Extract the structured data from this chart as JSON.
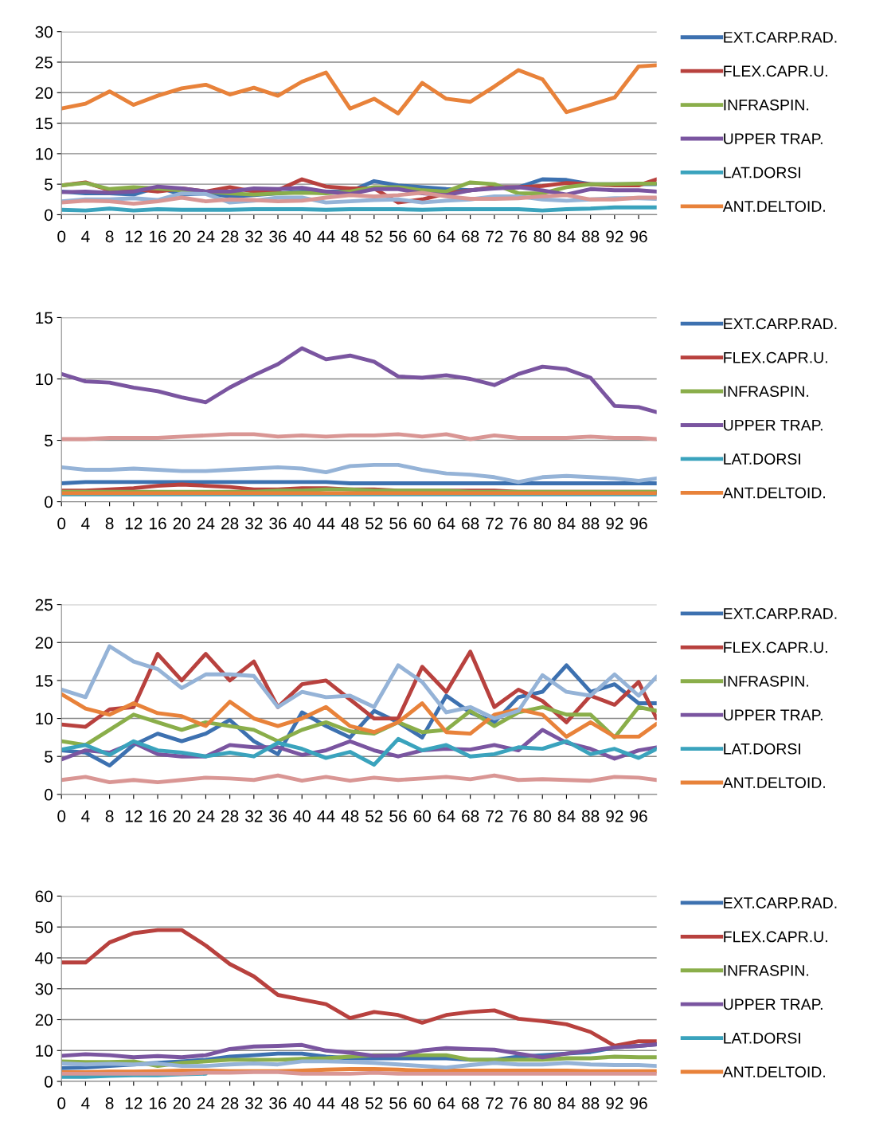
{
  "chart_data": [
    {
      "type": "line",
      "x": [
        0,
        4,
        8,
        12,
        16,
        20,
        24,
        28,
        32,
        36,
        40,
        44,
        48,
        52,
        56,
        60,
        64,
        68,
        72,
        76,
        80,
        84,
        88,
        92,
        96,
        99
      ],
      "xlim": [
        0,
        99
      ],
      "xticks": [
        0,
        4,
        8,
        12,
        16,
        20,
        24,
        28,
        32,
        36,
        40,
        44,
        48,
        52,
        56,
        60,
        64,
        68,
        72,
        76,
        80,
        84,
        88,
        92,
        96
      ],
      "ylim": [
        0,
        30
      ],
      "yticks": [
        0,
        5,
        10,
        15,
        20,
        25,
        30
      ],
      "grid": "y",
      "legend": "right",
      "marker": "none",
      "line_style": "solid",
      "series": [
        {
          "name": "EXT.CARP.RAD.",
          "color": "#3d71b0",
          "values": [
            3.8,
            3.5,
            3.5,
            3.3,
            4.5,
            3.3,
            3.5,
            3.0,
            3.2,
            3.5,
            3.8,
            3.8,
            3.8,
            5.5,
            4.8,
            4.5,
            4.2,
            4.0,
            4.5,
            4.5,
            5.8,
            5.7,
            5.0,
            5.0,
            5.0,
            5.0
          ]
        },
        {
          "name": "FLEX.CAPR.U.",
          "color": "#b8413e",
          "values": [
            4.8,
            5.3,
            4.0,
            4.2,
            3.8,
            4.3,
            3.8,
            4.5,
            3.8,
            4.0,
            5.8,
            4.6,
            4.3,
            4.3,
            2.0,
            2.5,
            3.5,
            4.0,
            4.5,
            4.5,
            4.7,
            5.2,
            5.0,
            4.8,
            4.8,
            5.8
          ]
        },
        {
          "name": "INFRASPIN.",
          "color": "#8aae4a",
          "values": [
            4.8,
            5.2,
            4.2,
            4.5,
            4.3,
            4.0,
            3.8,
            3.5,
            3.3,
            3.5,
            3.6,
            3.5,
            3.8,
            4.5,
            4.5,
            4.0,
            3.8,
            5.3,
            5.0,
            3.5,
            3.5,
            4.5,
            5.0,
            5.0,
            5.1,
            5.1
          ]
        },
        {
          "name": "UPPER TRAP.",
          "color": "#7a55a0",
          "values": [
            3.7,
            3.8,
            3.6,
            3.8,
            4.6,
            4.3,
            3.8,
            3.8,
            4.3,
            4.2,
            4.4,
            3.8,
            3.4,
            4.2,
            4.2,
            3.5,
            3.2,
            4.0,
            4.3,
            4.5,
            4.0,
            3.3,
            4.2,
            4.0,
            4.0,
            3.8
          ]
        },
        {
          "name": "LAT.DORSI",
          "color": "#3aa3bd",
          "values": [
            0.8,
            0.7,
            1.0,
            0.7,
            0.9,
            0.8,
            0.8,
            0.8,
            0.9,
            0.9,
            0.9,
            0.8,
            0.9,
            0.9,
            0.9,
            0.8,
            0.9,
            0.9,
            0.9,
            0.9,
            0.7,
            0.9,
            1.0,
            1.2,
            1.2,
            1.2
          ]
        },
        {
          "name": "ANT.DELTOID.",
          "color": "#e8823a",
          "values": [
            17.4,
            18.2,
            20.2,
            18.0,
            19.5,
            20.7,
            21.3,
            19.7,
            20.8,
            19.5,
            21.8,
            23.3,
            17.4,
            19.0,
            16.6,
            21.6,
            19.0,
            18.5,
            21.0,
            23.7,
            22.2,
            16.8,
            18.0,
            19.2,
            24.3,
            24.5
          ]
        },
        {
          "color": "#95b3d7",
          "values": [
            2.2,
            2.5,
            2.5,
            2.7,
            2.4,
            3.5,
            3.4,
            2.0,
            2.3,
            2.8,
            2.8,
            2.0,
            2.2,
            2.4,
            2.5,
            2.0,
            2.3,
            2.5,
            3.0,
            3.0,
            2.5,
            2.3,
            2.5,
            2.7,
            2.7,
            2.6
          ]
        },
        {
          "color": "#d99694",
          "values": [
            2.0,
            2.3,
            2.2,
            1.8,
            2.2,
            2.8,
            2.2,
            2.5,
            2.4,
            2.2,
            2.3,
            2.8,
            3.2,
            3.0,
            3.2,
            3.6,
            3.0,
            2.6,
            2.6,
            2.7,
            3.0,
            3.2,
            2.5,
            2.5,
            2.8,
            2.8
          ]
        }
      ]
    },
    {
      "type": "line",
      "x": [
        0,
        4,
        8,
        12,
        16,
        20,
        24,
        28,
        32,
        36,
        40,
        44,
        48,
        52,
        56,
        60,
        64,
        68,
        72,
        76,
        80,
        84,
        88,
        92,
        96,
        99
      ],
      "xlim": [
        0,
        99
      ],
      "xticks": [
        0,
        4,
        8,
        12,
        16,
        20,
        24,
        28,
        32,
        36,
        40,
        44,
        48,
        52,
        56,
        60,
        64,
        68,
        72,
        76,
        80,
        84,
        88,
        92,
        96
      ],
      "ylim": [
        0,
        15
      ],
      "yticks": [
        0,
        5,
        10,
        15
      ],
      "grid": "y",
      "legend": "right",
      "marker": "none",
      "line_style": "solid",
      "series": [
        {
          "name": "EXT.CARP.RAD.",
          "color": "#3d71b0",
          "values": [
            1.5,
            1.6,
            1.6,
            1.6,
            1.6,
            1.6,
            1.6,
            1.6,
            1.6,
            1.6,
            1.6,
            1.6,
            1.5,
            1.5,
            1.5,
            1.5,
            1.5,
            1.5,
            1.5,
            1.5,
            1.5,
            1.5,
            1.5,
            1.5,
            1.5,
            1.5
          ]
        },
        {
          "name": "FLEX.CAPR.U.",
          "color": "#b8413e",
          "values": [
            0.9,
            0.9,
            1.0,
            1.1,
            1.3,
            1.4,
            1.3,
            1.2,
            1.0,
            1.0,
            1.1,
            1.1,
            1.0,
            1.0,
            0.9,
            0.9,
            0.9,
            0.9,
            0.9,
            0.8,
            0.8,
            0.8,
            0.8,
            0.8,
            0.8,
            0.8
          ]
        },
        {
          "name": "INFRASPIN.",
          "color": "#8aae4a",
          "values": [
            0.8,
            0.8,
            0.8,
            0.8,
            0.8,
            0.8,
            0.8,
            0.8,
            0.8,
            0.9,
            0.9,
            1.0,
            1.0,
            0.9,
            0.9,
            0.9,
            0.9,
            0.8,
            0.8,
            0.8,
            0.8,
            0.8,
            0.8,
            0.8,
            0.8,
            0.8
          ]
        },
        {
          "name": "UPPER TRAP.",
          "color": "#7a55a0",
          "values": [
            10.4,
            9.8,
            9.7,
            9.3,
            9.0,
            8.5,
            8.1,
            9.3,
            10.3,
            11.2,
            12.5,
            11.6,
            11.9,
            11.4,
            10.2,
            10.1,
            10.3,
            10.0,
            9.5,
            10.4,
            11.0,
            10.8,
            10.1,
            7.8,
            7.7,
            7.3
          ]
        },
        {
          "name": "LAT.DORSI",
          "color": "#3aa3bd",
          "values": [
            0.6,
            0.6,
            0.6,
            0.6,
            0.6,
            0.6,
            0.6,
            0.6,
            0.6,
            0.6,
            0.6,
            0.6,
            0.6,
            0.6,
            0.6,
            0.6,
            0.6,
            0.6,
            0.6,
            0.6,
            0.6,
            0.6,
            0.6,
            0.6,
            0.6,
            0.6
          ]
        },
        {
          "name": "ANT.DELTOID.",
          "color": "#e8823a",
          "values": [
            0.7,
            0.7,
            0.7,
            0.7,
            0.7,
            0.7,
            0.7,
            0.7,
            0.7,
            0.7,
            0.7,
            0.7,
            0.7,
            0.7,
            0.7,
            0.7,
            0.7,
            0.7,
            0.7,
            0.7,
            0.7,
            0.7,
            0.7,
            0.7,
            0.7,
            0.7
          ]
        },
        {
          "color": "#95b3d7",
          "values": [
            2.8,
            2.6,
            2.6,
            2.7,
            2.6,
            2.5,
            2.5,
            2.6,
            2.7,
            2.8,
            2.7,
            2.4,
            2.9,
            3.0,
            3.0,
            2.6,
            2.3,
            2.2,
            2.0,
            1.6,
            2.0,
            2.1,
            2.0,
            1.9,
            1.7,
            1.9
          ]
        },
        {
          "color": "#d99694",
          "values": [
            5.1,
            5.1,
            5.2,
            5.2,
            5.2,
            5.3,
            5.4,
            5.5,
            5.5,
            5.3,
            5.4,
            5.3,
            5.4,
            5.4,
            5.5,
            5.3,
            5.5,
            5.1,
            5.4,
            5.2,
            5.2,
            5.2,
            5.3,
            5.2,
            5.2,
            5.1
          ]
        }
      ]
    },
    {
      "type": "line",
      "x": [
        0,
        4,
        8,
        12,
        16,
        20,
        24,
        28,
        32,
        36,
        40,
        44,
        48,
        52,
        56,
        60,
        64,
        68,
        72,
        76,
        80,
        84,
        88,
        92,
        96,
        99
      ],
      "xlim": [
        0,
        99
      ],
      "xticks": [
        0,
        4,
        8,
        12,
        16,
        20,
        24,
        28,
        32,
        36,
        40,
        44,
        48,
        52,
        56,
        60,
        64,
        68,
        72,
        76,
        80,
        84,
        88,
        92,
        96
      ],
      "ylim": [
        0,
        25
      ],
      "yticks": [
        0,
        5,
        10,
        15,
        20,
        25
      ],
      "grid": "y",
      "legend": "right",
      "marker": "none",
      "line_style": "solid",
      "series": [
        {
          "name": "EXT.CARP.RAD.",
          "color": "#3d71b0",
          "values": [
            5.8,
            5.5,
            3.8,
            6.5,
            8.0,
            7.0,
            8.0,
            9.8,
            7.0,
            5.3,
            10.8,
            9.0,
            7.5,
            11.0,
            9.5,
            7.5,
            13.0,
            10.8,
            9.5,
            12.8,
            13.5,
            17.0,
            13.5,
            14.5,
            12.0,
            12.0
          ]
        },
        {
          "name": "FLEX.CAPR.U.",
          "color": "#b8413e",
          "values": [
            9.2,
            8.9,
            11.2,
            11.5,
            18.5,
            15.0,
            18.5,
            15.0,
            17.5,
            11.5,
            14.5,
            15.0,
            12.5,
            10.0,
            10.0,
            16.8,
            13.5,
            18.8,
            11.5,
            13.8,
            12.3,
            9.5,
            13.0,
            11.8,
            14.8,
            10.0
          ]
        },
        {
          "name": "INFRASPIN.",
          "color": "#8aae4a",
          "values": [
            7.0,
            6.5,
            8.5,
            10.5,
            9.5,
            8.5,
            9.5,
            9.0,
            8.5,
            7.0,
            8.5,
            9.5,
            8.3,
            8.0,
            9.5,
            8.2,
            8.5,
            11.0,
            9.0,
            10.8,
            11.5,
            10.5,
            10.5,
            7.5,
            11.5,
            11.0
          ]
        },
        {
          "name": "UPPER TRAP.",
          "color": "#7a55a0",
          "values": [
            4.6,
            5.8,
            5.5,
            6.8,
            5.3,
            5.0,
            5.0,
            6.5,
            6.2,
            6.2,
            5.2,
            5.8,
            7.0,
            5.8,
            5.0,
            5.8,
            6.0,
            5.9,
            6.5,
            5.8,
            8.5,
            6.8,
            6.0,
            4.7,
            5.8,
            6.2
          ]
        },
        {
          "name": "LAT.DORSI",
          "color": "#3aa3bd",
          "values": [
            5.9,
            6.5,
            5.2,
            7.0,
            5.8,
            5.5,
            5.0,
            5.5,
            5.0,
            6.8,
            6.0,
            4.8,
            5.6,
            3.9,
            7.3,
            5.8,
            6.5,
            5.0,
            5.3,
            6.2,
            6.0,
            7.0,
            5.3,
            6.0,
            4.8,
            6.0
          ]
        },
        {
          "name": "ANT.DELTOID.",
          "color": "#e8823a",
          "values": [
            13.2,
            11.3,
            10.5,
            12.0,
            10.7,
            10.3,
            9.0,
            12.2,
            10.0,
            9.0,
            10.0,
            11.5,
            9.0,
            8.2,
            9.5,
            12.0,
            8.2,
            8.0,
            10.5,
            11.2,
            10.5,
            7.6,
            9.5,
            7.6,
            7.6,
            9.3
          ]
        },
        {
          "color": "#95b3d7",
          "values": [
            13.8,
            12.8,
            19.5,
            17.5,
            16.5,
            14.0,
            15.8,
            15.8,
            15.6,
            11.5,
            13.5,
            12.8,
            13.0,
            11.5,
            17.0,
            14.8,
            10.8,
            11.5,
            10.0,
            11.0,
            15.7,
            13.5,
            13.0,
            15.8,
            13.0,
            15.5
          ]
        },
        {
          "color": "#d99694",
          "values": [
            1.9,
            2.3,
            1.6,
            1.9,
            1.6,
            1.9,
            2.2,
            2.1,
            1.9,
            2.5,
            1.8,
            2.3,
            1.8,
            2.2,
            1.9,
            2.1,
            2.3,
            2.0,
            2.5,
            1.9,
            2.0,
            1.9,
            1.8,
            2.3,
            2.2,
            1.9
          ]
        }
      ]
    },
    {
      "type": "line",
      "x": [
        0,
        4,
        8,
        12,
        16,
        20,
        24,
        28,
        32,
        36,
        40,
        44,
        48,
        52,
        56,
        60,
        64,
        68,
        72,
        76,
        80,
        84,
        88,
        92,
        96,
        99
      ],
      "xlim": [
        0,
        99
      ],
      "xticks": [
        0,
        4,
        8,
        12,
        16,
        20,
        24,
        28,
        32,
        36,
        40,
        44,
        48,
        52,
        56,
        60,
        64,
        68,
        72,
        76,
        80,
        84,
        88,
        92,
        96
      ],
      "ylim": [
        0,
        60
      ],
      "yticks": [
        0,
        10,
        20,
        30,
        40,
        50,
        60
      ],
      "grid": "y",
      "legend": "right",
      "marker": "none",
      "line_style": "solid",
      "series": [
        {
          "name": "EXT.CARP.RAD.",
          "color": "#3d71b0",
          "values": [
            4.3,
            4.5,
            5.0,
            5.5,
            6.0,
            6.5,
            7.0,
            8.0,
            8.5,
            9.0,
            9.0,
            8.0,
            7.5,
            7.5,
            7.5,
            7.5,
            7.5,
            7.0,
            7.0,
            8.0,
            8.5,
            9.0,
            9.5,
            11.0,
            11.5,
            12.0
          ]
        },
        {
          "name": "FLEX.CAPR.U.",
          "color": "#b8413e",
          "values": [
            38.5,
            38.5,
            45,
            48,
            49,
            49,
            44,
            38,
            34,
            28,
            26.5,
            25,
            20.5,
            22.5,
            21.5,
            19,
            21.5,
            22.5,
            23,
            20.3,
            19.5,
            18.5,
            16,
            11.5,
            13,
            13
          ]
        },
        {
          "name": "INFRASPIN.",
          "color": "#8aae4a",
          "values": [
            6.5,
            6.3,
            6.3,
            6.5,
            5.0,
            6.0,
            6.5,
            7.0,
            7.0,
            7.0,
            7.3,
            7.5,
            8.0,
            8.5,
            8.5,
            8.5,
            8.5,
            7.0,
            7.0,
            7.0,
            7.0,
            7.5,
            7.5,
            8.0,
            7.8,
            7.8
          ]
        },
        {
          "name": "UPPER TRAP.",
          "color": "#7a55a0",
          "values": [
            8.3,
            8.8,
            8.5,
            7.8,
            8.2,
            7.8,
            8.5,
            10.5,
            11.3,
            11.5,
            11.8,
            10.0,
            9.3,
            8.3,
            8.5,
            10.0,
            10.8,
            10.5,
            10.3,
            9.0,
            7.8,
            9.0,
            10.0,
            11.0,
            11.5,
            12.0
          ]
        },
        {
          "name": "LAT.DORSI",
          "color": "#3aa3bd",
          "values": [
            1.5,
            1.5,
            1.8,
            2.0,
            2.0,
            2.3,
            2.5,
            null,
            null,
            null,
            null,
            null,
            null,
            null,
            null,
            null,
            null,
            null,
            null,
            null,
            null,
            null,
            null,
            null,
            null,
            null
          ]
        },
        {
          "name": "ANT.DELTOID.",
          "color": "#e8823a",
          "values": [
            3.0,
            3.0,
            3.2,
            3.2,
            3.3,
            3.5,
            3.5,
            3.3,
            3.3,
            3.3,
            3.5,
            3.8,
            4.0,
            4.0,
            3.8,
            3.5,
            3.5,
            3.5,
            3.5,
            3.5,
            3.5,
            3.5,
            3.3,
            3.3,
            3.3,
            3.3
          ]
        },
        {
          "color": "#95b3d7",
          "values": [
            5.8,
            5.5,
            5.7,
            5.5,
            5.8,
            5.0,
            5.0,
            5.5,
            5.8,
            5.5,
            6.5,
            6.5,
            6.3,
            6.0,
            5.5,
            5.0,
            4.5,
            5.3,
            6.0,
            5.5,
            5.5,
            6.0,
            5.5,
            5.3,
            5.3,
            5.0
          ]
        },
        {
          "color": "#d99694",
          "values": [
            2.5,
            2.5,
            2.5,
            2.5,
            2.5,
            2.5,
            2.8,
            2.8,
            3.0,
            3.0,
            2.5,
            2.5,
            2.5,
            2.8,
            2.5,
            2.5,
            2.5,
            2.5,
            2.5,
            2.5,
            2.5,
            2.5,
            2.5,
            2.5,
            2.5,
            2.5
          ]
        }
      ]
    }
  ]
}
